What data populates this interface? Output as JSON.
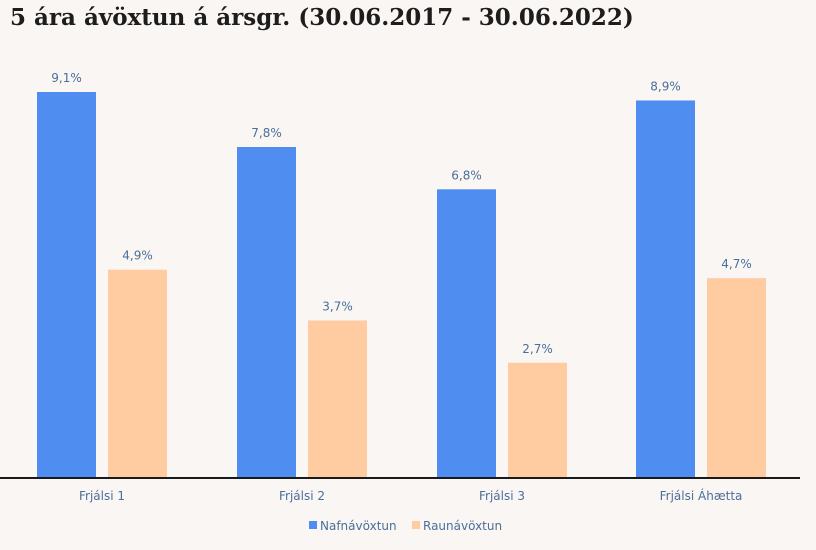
{
  "title": "5 ára ávöxtun á ársgr. (30.06.2017 - 30.06.2022)",
  "chart_data": {
    "type": "bar",
    "title": "5 ára ávöxtun á ársgr. (30.06.2017 - 30.06.2022)",
    "categories": [
      "Frjálsi 1",
      "Frjálsi 2",
      "Frjálsi 3",
      "Frjálsi Áhætta"
    ],
    "series": [
      {
        "name": "Nafnávöxtun",
        "values": [
          9.1,
          7.8,
          6.8,
          8.9
        ],
        "labels": [
          "9,1%",
          "7,8%",
          "6,8%",
          "8,9%"
        ],
        "color": "#4f8ef0"
      },
      {
        "name": "Raunávöxtun",
        "values": [
          4.9,
          3.7,
          2.7,
          4.7
        ],
        "labels": [
          "4,9%",
          "3,7%",
          "2,7%",
          "4,7%"
        ],
        "color": "#ffcca2"
      }
    ],
    "ylim": [
      0,
      9.1
    ],
    "grid": false,
    "legend": "bottom"
  }
}
